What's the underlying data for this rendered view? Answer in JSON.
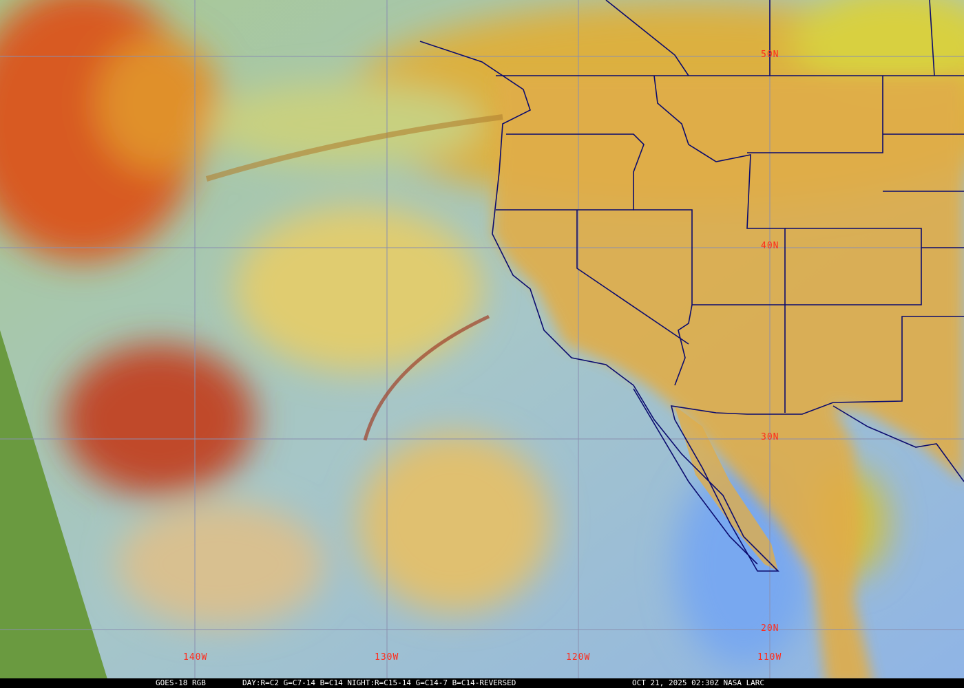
{
  "map": {
    "latitude_labels": [
      "50N",
      "40N",
      "30N",
      "20N"
    ],
    "longitude_labels": [
      "140W",
      "130W",
      "120W",
      "110W"
    ],
    "colors": {
      "grid": "#8a8fb0",
      "borders": "#0a0a6e",
      "labels": "#ff2a1a",
      "land": "#e0ad45",
      "ocean": "#9fc0c8"
    }
  },
  "caption": {
    "satellite": "GOES-18 RGB",
    "recipe": "DAY:R=C2 G=C7-14 B=C14 NIGHT:R=C15-14 G=C14-7 B=C14-REVERSED",
    "timestamp": "OCT 21, 2025 02:30Z NASA LARC"
  }
}
